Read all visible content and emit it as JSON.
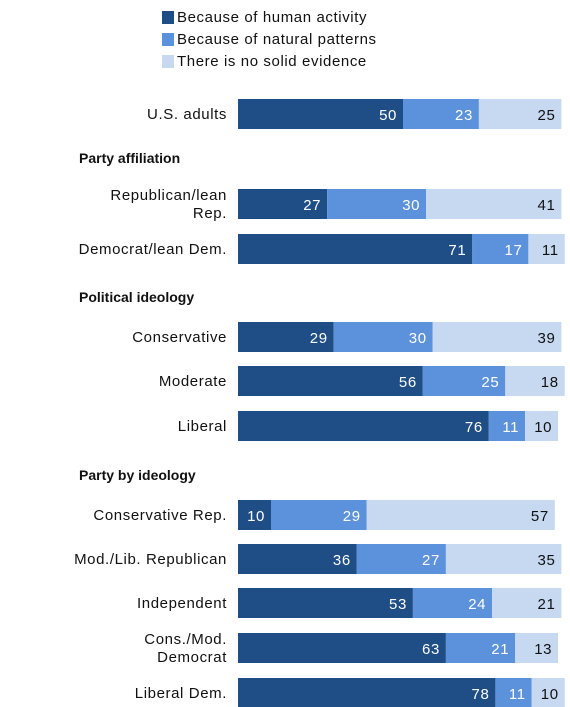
{
  "chart_data": {
    "type": "bar",
    "stacked": true,
    "orientation": "horizontal",
    "xlim": [
      0,
      100
    ],
    "series": [
      {
        "name": "Because of human activity",
        "color": "#1f4e87"
      },
      {
        "name": "Because of natural patterns",
        "color": "#5b92db"
      },
      {
        "name": "There is no solid evidence",
        "color": "#c6d9f1"
      }
    ],
    "rows": [
      {
        "kind": "bar",
        "label": [
          "U.S. adults"
        ],
        "values": [
          50,
          23,
          25
        ]
      },
      {
        "kind": "heading",
        "label": "Party affiliation"
      },
      {
        "kind": "bar",
        "label": [
          "Republican/lean",
          "Rep."
        ],
        "values": [
          27,
          30,
          41
        ]
      },
      {
        "kind": "bar",
        "label": [
          "Democrat/lean Dem."
        ],
        "values": [
          71,
          17,
          11
        ]
      },
      {
        "kind": "heading",
        "label": "Political ideology"
      },
      {
        "kind": "bar",
        "label": [
          "Conservative"
        ],
        "values": [
          29,
          30,
          39
        ]
      },
      {
        "kind": "bar",
        "label": [
          "Moderate"
        ],
        "values": [
          56,
          25,
          18
        ]
      },
      {
        "kind": "bar",
        "label": [
          "Liberal"
        ],
        "values": [
          76,
          11,
          10
        ]
      },
      {
        "kind": "heading",
        "label": "Party by ideology"
      },
      {
        "kind": "bar",
        "label": [
          "Conservative Rep."
        ],
        "values": [
          10,
          29,
          57
        ]
      },
      {
        "kind": "bar",
        "label": [
          "Mod./Lib. Republican"
        ],
        "values": [
          36,
          27,
          35
        ]
      },
      {
        "kind": "bar",
        "label": [
          "Independent"
        ],
        "values": [
          53,
          24,
          21
        ]
      },
      {
        "kind": "bar",
        "label": [
          "Cons./Mod.",
          "Democrat"
        ],
        "values": [
          63,
          21,
          13
        ]
      },
      {
        "kind": "bar",
        "label": [
          "Liberal Dem."
        ],
        "values": [
          78,
          11,
          10
        ]
      }
    ]
  }
}
